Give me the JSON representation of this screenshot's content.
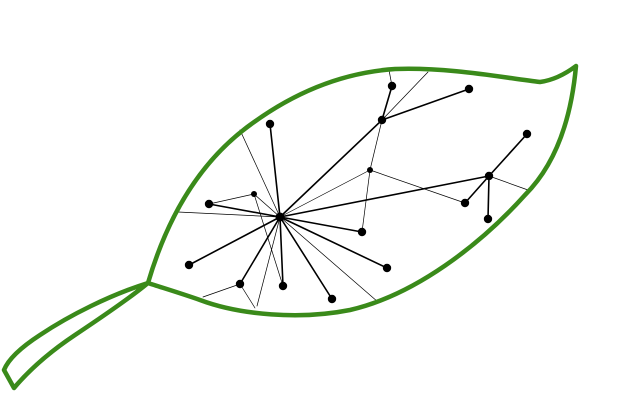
{
  "diagram": {
    "colors": {
      "leaf_outline": "#3a8a1a",
      "network": "#000000",
      "background": "#ffffff"
    }
  }
}
